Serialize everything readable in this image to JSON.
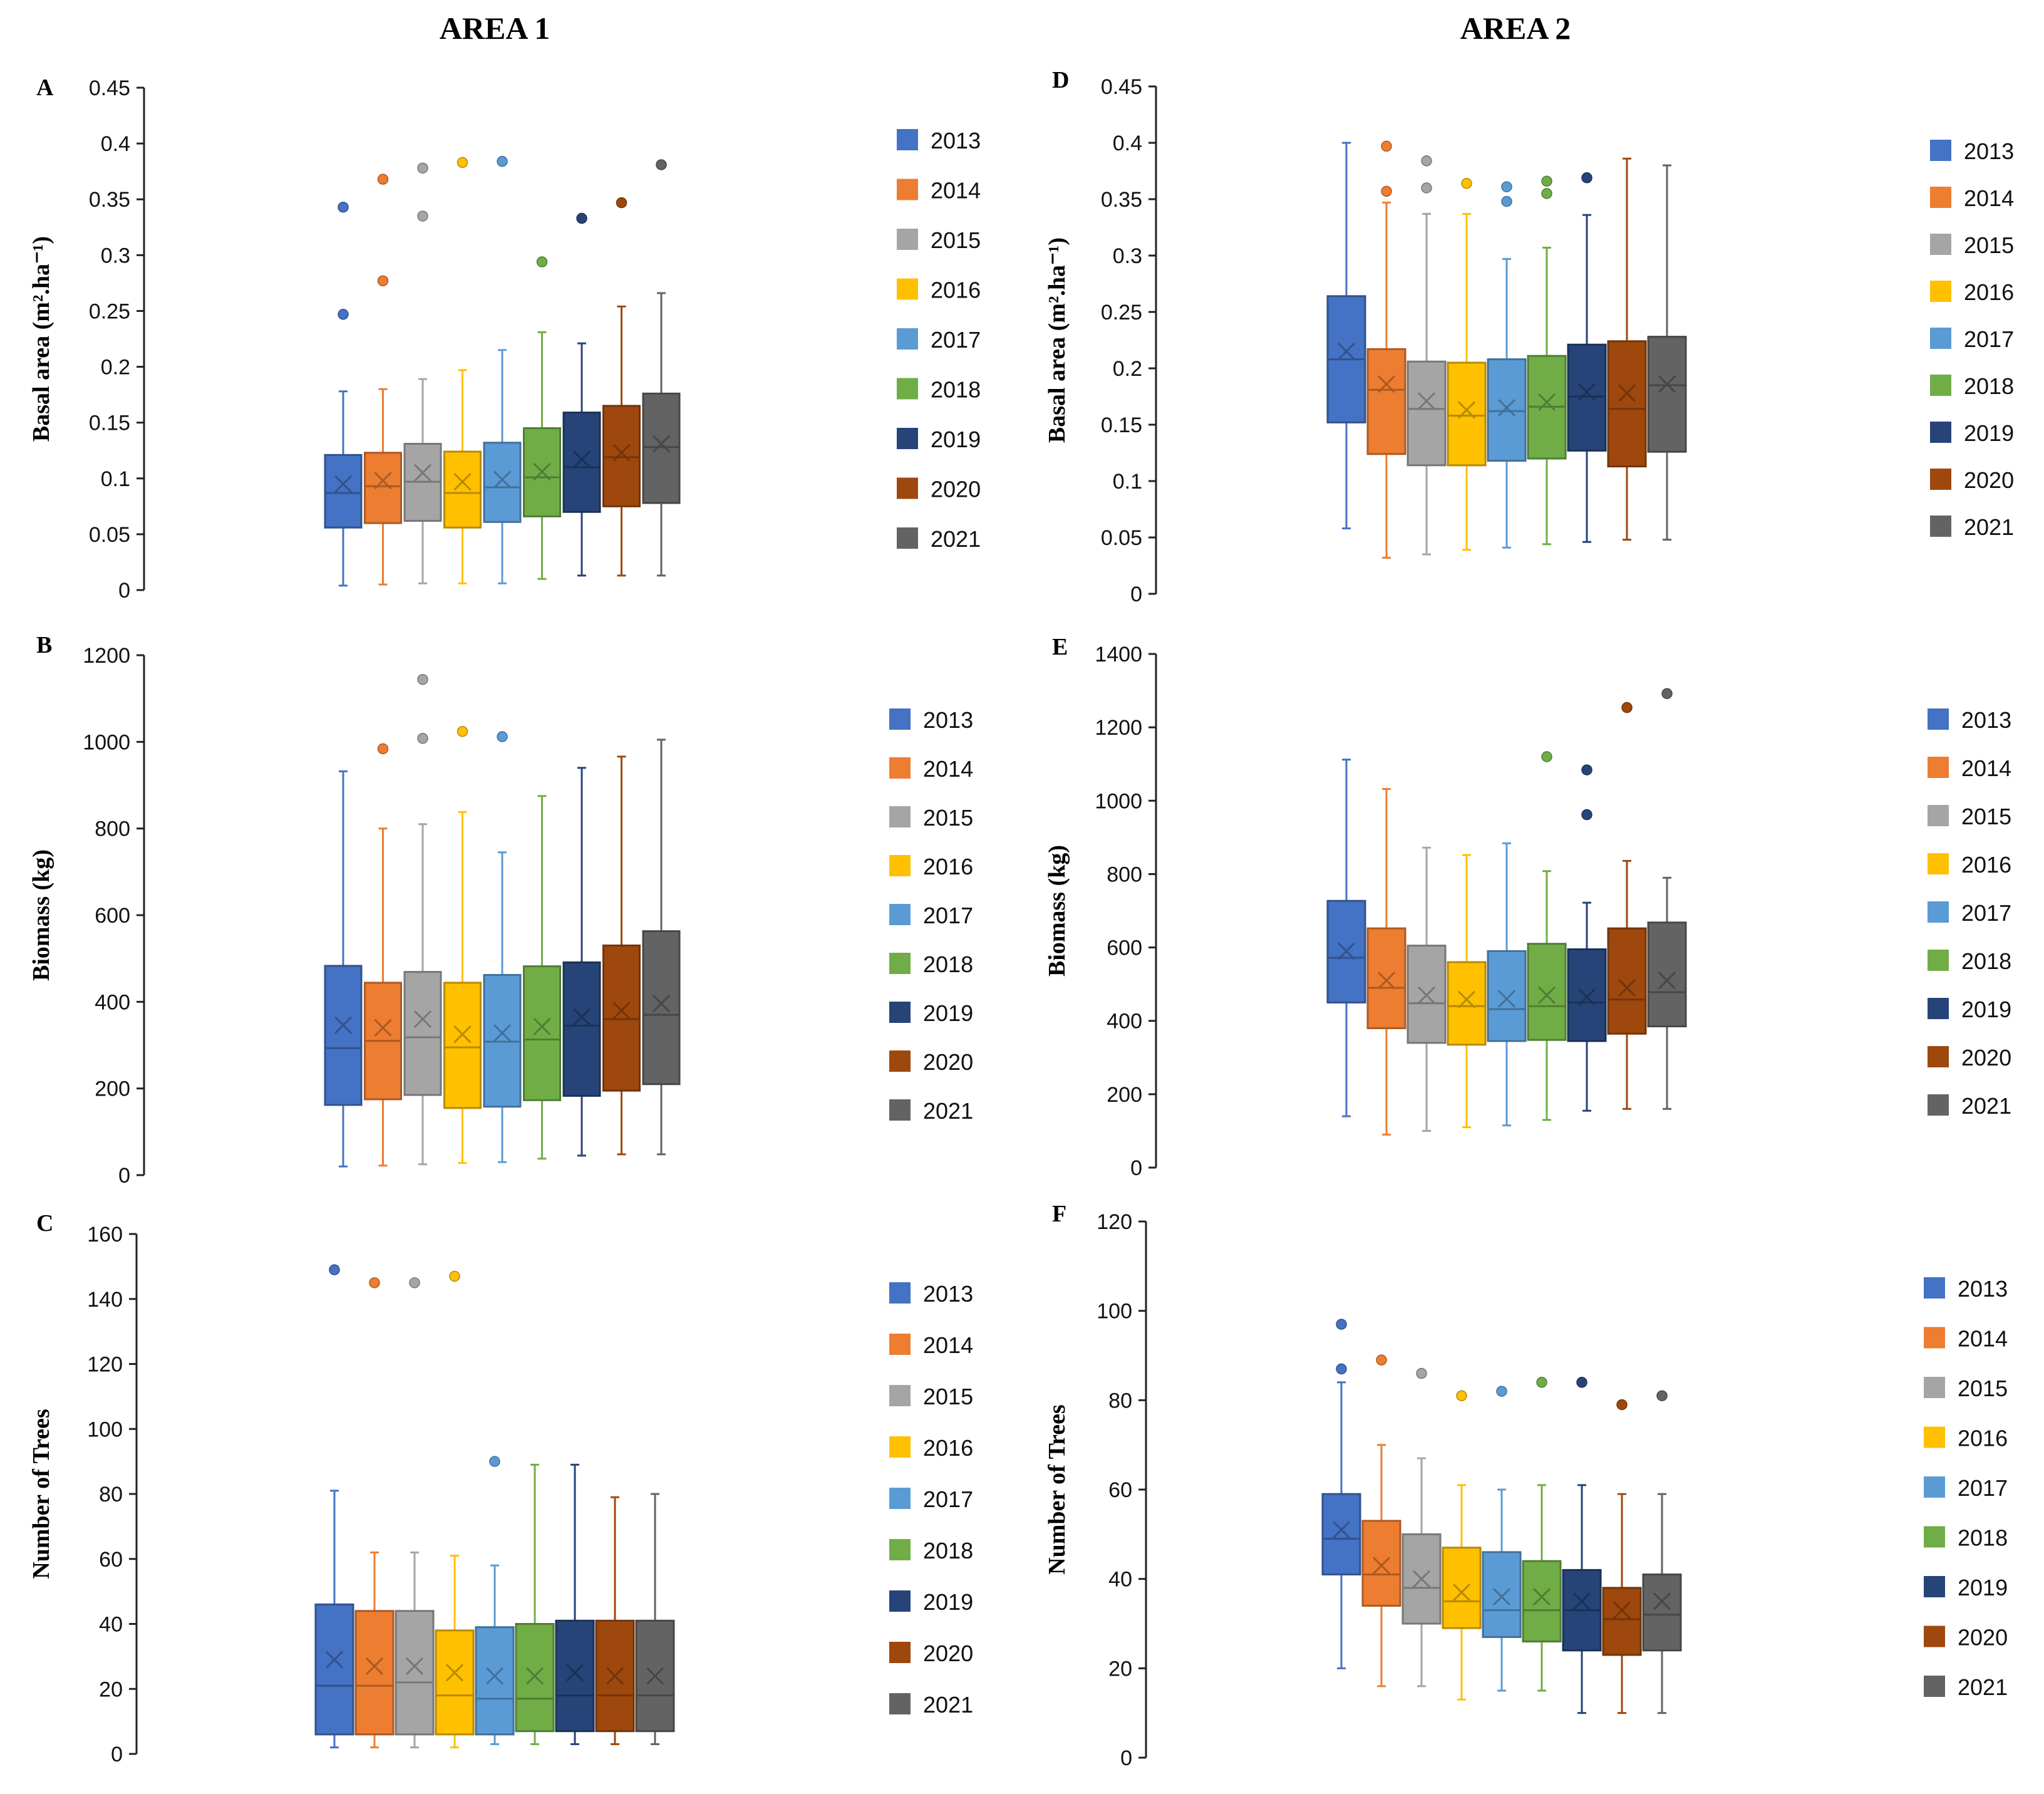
{
  "figure": {
    "area_titles": [
      "AREA 1",
      "AREA 2"
    ]
  },
  "legend": {
    "years": [
      "2013",
      "2014",
      "2015",
      "2016",
      "2017",
      "2018",
      "2019",
      "2020",
      "2021"
    ],
    "colors": [
      "#4472C4",
      "#ED7D31",
      "#A5A5A5",
      "#FFC000",
      "#5B9BD5",
      "#70AD47",
      "#264478",
      "#9E480E",
      "#636363"
    ]
  },
  "chart_data": [
    {
      "type": "box",
      "panel": "A",
      "area": "AREA 1",
      "ylabel": "Basal area (m².ha⁻¹)",
      "ylim": [
        0,
        0.45
      ],
      "yticks": [
        "0",
        "0.05",
        "0.1",
        "0.15",
        "0.2",
        "0.25",
        "0.3",
        "0.35",
        "0.4",
        "0.45"
      ],
      "series": [
        {
          "name": "2013",
          "min": 0.004,
          "q1": 0.056,
          "median": 0.087,
          "mean": 0.095,
          "q3": 0.121,
          "max": 0.178,
          "outliers": [
            0.247,
            0.343
          ]
        },
        {
          "name": "2014",
          "min": 0.005,
          "q1": 0.06,
          "median": 0.093,
          "mean": 0.098,
          "q3": 0.123,
          "max": 0.18,
          "outliers": [
            0.277,
            0.368
          ]
        },
        {
          "name": "2015",
          "min": 0.006,
          "q1": 0.062,
          "median": 0.097,
          "mean": 0.105,
          "q3": 0.131,
          "max": 0.189,
          "outliers": [
            0.335,
            0.378
          ]
        },
        {
          "name": "2016",
          "min": 0.006,
          "q1": 0.056,
          "median": 0.087,
          "mean": 0.097,
          "q3": 0.124,
          "max": 0.197,
          "outliers": [
            0.383
          ]
        },
        {
          "name": "2017",
          "min": 0.006,
          "q1": 0.061,
          "median": 0.092,
          "mean": 0.099,
          "q3": 0.132,
          "max": 0.215,
          "outliers": [
            0.384
          ]
        },
        {
          "name": "2018",
          "min": 0.01,
          "q1": 0.066,
          "median": 0.101,
          "mean": 0.106,
          "q3": 0.145,
          "max": 0.231,
          "outliers": [
            0.294
          ]
        },
        {
          "name": "2019",
          "min": 0.013,
          "q1": 0.07,
          "median": 0.11,
          "mean": 0.117,
          "q3": 0.159,
          "max": 0.221,
          "outliers": [
            0.333
          ]
        },
        {
          "name": "2020",
          "min": 0.013,
          "q1": 0.075,
          "median": 0.119,
          "mean": 0.123,
          "q3": 0.165,
          "max": 0.254,
          "outliers": [
            0.347
          ]
        },
        {
          "name": "2021",
          "min": 0.013,
          "q1": 0.078,
          "median": 0.128,
          "mean": 0.131,
          "q3": 0.176,
          "max": 0.266,
          "outliers": [
            0.381
          ]
        }
      ]
    },
    {
      "type": "box",
      "panel": "B",
      "area": "AREA 1",
      "ylabel": "Biomass (kg)",
      "ylim": [
        0,
        1200
      ],
      "yticks": [
        "0",
        "200",
        "400",
        "600",
        "800",
        "1000",
        "1200"
      ],
      "series": [
        {
          "name": "2013",
          "min": 20,
          "q1": 162,
          "median": 293,
          "mean": 346,
          "q3": 483,
          "max": 932,
          "outliers": []
        },
        {
          "name": "2014",
          "min": 22,
          "q1": 175,
          "median": 310,
          "mean": 340,
          "q3": 444,
          "max": 800,
          "outliers": [
            984
          ]
        },
        {
          "name": "2015",
          "min": 25,
          "q1": 185,
          "median": 318,
          "mean": 360,
          "q3": 469,
          "max": 810,
          "outliers": [
            1008,
            1144
          ]
        },
        {
          "name": "2016",
          "min": 28,
          "q1": 155,
          "median": 295,
          "mean": 325,
          "q3": 444,
          "max": 838,
          "outliers": [
            1024
          ]
        },
        {
          "name": "2017",
          "min": 30,
          "q1": 158,
          "median": 308,
          "mean": 328,
          "q3": 462,
          "max": 745,
          "outliers": [
            1012
          ]
        },
        {
          "name": "2018",
          "min": 38,
          "q1": 173,
          "median": 313,
          "mean": 343,
          "q3": 482,
          "max": 875,
          "outliers": []
        },
        {
          "name": "2019",
          "min": 45,
          "q1": 183,
          "median": 345,
          "mean": 365,
          "q3": 491,
          "max": 940,
          "outliers": []
        },
        {
          "name": "2020",
          "min": 48,
          "q1": 195,
          "median": 360,
          "mean": 380,
          "q3": 530,
          "max": 966,
          "outliers": []
        },
        {
          "name": "2021",
          "min": 48,
          "q1": 210,
          "median": 370,
          "mean": 396,
          "q3": 563,
          "max": 1005,
          "outliers": []
        }
      ]
    },
    {
      "type": "box",
      "panel": "C",
      "area": "AREA 1",
      "ylabel": "Number of Trees",
      "ylim": [
        0,
        160
      ],
      "yticks": [
        "0",
        "20",
        "40",
        "60",
        "80",
        "100",
        "120",
        "140",
        "160"
      ],
      "series": [
        {
          "name": "2013",
          "min": 2,
          "q1": 6,
          "median": 21,
          "mean": 29,
          "q3": 46,
          "max": 81,
          "outliers": [
            149
          ]
        },
        {
          "name": "2014",
          "min": 2,
          "q1": 6,
          "median": 21,
          "mean": 27,
          "q3": 44,
          "max": 62,
          "outliers": [
            145
          ]
        },
        {
          "name": "2015",
          "min": 2,
          "q1": 6,
          "median": 22,
          "mean": 27,
          "q3": 44,
          "max": 62,
          "outliers": [
            145
          ]
        },
        {
          "name": "2016",
          "min": 2,
          "q1": 6,
          "median": 18,
          "mean": 25,
          "q3": 38,
          "max": 61,
          "outliers": [
            147
          ]
        },
        {
          "name": "2017",
          "min": 3,
          "q1": 6,
          "median": 17,
          "mean": 24,
          "q3": 39,
          "max": 58,
          "outliers": [
            90
          ]
        },
        {
          "name": "2018",
          "min": 3,
          "q1": 7,
          "median": 17,
          "mean": 24,
          "q3": 40,
          "max": 89,
          "outliers": []
        },
        {
          "name": "2019",
          "min": 3,
          "q1": 7,
          "median": 18,
          "mean": 25,
          "q3": 41,
          "max": 89,
          "outliers": []
        },
        {
          "name": "2020",
          "min": 3,
          "q1": 7,
          "median": 18,
          "mean": 24,
          "q3": 41,
          "max": 79,
          "outliers": []
        },
        {
          "name": "2021",
          "min": 3,
          "q1": 7,
          "median": 18,
          "mean": 24,
          "q3": 41,
          "max": 80,
          "outliers": []
        }
      ]
    },
    {
      "type": "box",
      "panel": "D",
      "area": "AREA 2",
      "ylabel": "Basal area (m².ha⁻¹)",
      "ylim": [
        0,
        0.45
      ],
      "yticks": [
        "0",
        "0.05",
        "0.1",
        "0.15",
        "0.2",
        "0.25",
        "0.3",
        "0.35",
        "0.4",
        "0.45"
      ],
      "series": [
        {
          "name": "2013",
          "min": 0.058,
          "q1": 0.152,
          "median": 0.208,
          "mean": 0.215,
          "q3": 0.264,
          "max": 0.4,
          "outliers": []
        },
        {
          "name": "2014",
          "min": 0.032,
          "q1": 0.124,
          "median": 0.181,
          "mean": 0.186,
          "q3": 0.217,
          "max": 0.347,
          "outliers": [
            0.357,
            0.397
          ]
        },
        {
          "name": "2015",
          "min": 0.035,
          "q1": 0.114,
          "median": 0.164,
          "mean": 0.171,
          "q3": 0.206,
          "max": 0.337,
          "outliers": [
            0.36,
            0.384
          ]
        },
        {
          "name": "2016",
          "min": 0.039,
          "q1": 0.114,
          "median": 0.158,
          "mean": 0.163,
          "q3": 0.205,
          "max": 0.337,
          "outliers": [
            0.364
          ]
        },
        {
          "name": "2017",
          "min": 0.041,
          "q1": 0.118,
          "median": 0.162,
          "mean": 0.165,
          "q3": 0.208,
          "max": 0.297,
          "outliers": [
            0.348,
            0.361
          ]
        },
        {
          "name": "2018",
          "min": 0.044,
          "q1": 0.12,
          "median": 0.166,
          "mean": 0.17,
          "q3": 0.211,
          "max": 0.307,
          "outliers": [
            0.355,
            0.366
          ]
        },
        {
          "name": "2019",
          "min": 0.046,
          "q1": 0.127,
          "median": 0.175,
          "mean": 0.179,
          "q3": 0.221,
          "max": 0.336,
          "outliers": [
            0.369
          ]
        },
        {
          "name": "2020",
          "min": 0.048,
          "q1": 0.113,
          "median": 0.164,
          "mean": 0.178,
          "q3": 0.224,
          "max": 0.386,
          "outliers": []
        },
        {
          "name": "2021",
          "min": 0.048,
          "q1": 0.126,
          "median": 0.185,
          "mean": 0.186,
          "q3": 0.228,
          "max": 0.38,
          "outliers": []
        }
      ]
    },
    {
      "type": "box",
      "panel": "E",
      "area": "AREA 2",
      "ylabel": "Biomass (kg)",
      "ylim": [
        0,
        1400
      ],
      "yticks": [
        "0",
        "200",
        "400",
        "600",
        "800",
        "1000",
        "1200",
        "1400"
      ],
      "series": [
        {
          "name": "2013",
          "min": 140,
          "q1": 450,
          "median": 572,
          "mean": 590,
          "q3": 727,
          "max": 1112,
          "outliers": []
        },
        {
          "name": "2014",
          "min": 90,
          "q1": 380,
          "median": 490,
          "mean": 510,
          "q3": 652,
          "max": 1032,
          "outliers": []
        },
        {
          "name": "2015",
          "min": 100,
          "q1": 340,
          "median": 448,
          "mean": 470,
          "q3": 605,
          "max": 872,
          "outliers": []
        },
        {
          "name": "2016",
          "min": 110,
          "q1": 335,
          "median": 440,
          "mean": 458,
          "q3": 560,
          "max": 852,
          "outliers": []
        },
        {
          "name": "2017",
          "min": 115,
          "q1": 345,
          "median": 432,
          "mean": 460,
          "q3": 590,
          "max": 884,
          "outliers": []
        },
        {
          "name": "2018",
          "min": 130,
          "q1": 348,
          "median": 440,
          "mean": 470,
          "q3": 610,
          "max": 808,
          "outliers": [
            1120
          ]
        },
        {
          "name": "2019",
          "min": 155,
          "q1": 345,
          "median": 450,
          "mean": 465,
          "q3": 595,
          "max": 722,
          "outliers": [
            962,
            1084
          ]
        },
        {
          "name": "2020",
          "min": 160,
          "q1": 365,
          "median": 458,
          "mean": 490,
          "q3": 652,
          "max": 836,
          "outliers": [
            1254
          ]
        },
        {
          "name": "2021",
          "min": 160,
          "q1": 385,
          "median": 478,
          "mean": 510,
          "q3": 668,
          "max": 790,
          "outliers": [
            1292
          ]
        }
      ]
    },
    {
      "type": "box",
      "panel": "F",
      "area": "AREA 2",
      "ylabel": "Number of Trees",
      "ylim": [
        0,
        120
      ],
      "yticks": [
        "0",
        "20",
        "40",
        "60",
        "80",
        "100",
        "120"
      ],
      "series": [
        {
          "name": "2013",
          "min": 20,
          "q1": 41,
          "median": 49,
          "mean": 51,
          "q3": 59,
          "max": 84,
          "outliers": [
            87,
            97
          ]
        },
        {
          "name": "2014",
          "min": 16,
          "q1": 34,
          "median": 41,
          "mean": 43,
          "q3": 53,
          "max": 70,
          "outliers": [
            89
          ]
        },
        {
          "name": "2015",
          "min": 16,
          "q1": 30,
          "median": 38,
          "mean": 40,
          "q3": 50,
          "max": 67,
          "outliers": [
            86
          ]
        },
        {
          "name": "2016",
          "min": 13,
          "q1": 29,
          "median": 35,
          "mean": 37,
          "q3": 47,
          "max": 61,
          "outliers": [
            81
          ]
        },
        {
          "name": "2017",
          "min": 15,
          "q1": 27,
          "median": 33,
          "mean": 36,
          "q3": 46,
          "max": 60,
          "outliers": [
            82
          ]
        },
        {
          "name": "2018",
          "min": 15,
          "q1": 26,
          "median": 33,
          "mean": 36,
          "q3": 44,
          "max": 61,
          "outliers": [
            84
          ]
        },
        {
          "name": "2019",
          "min": 10,
          "q1": 24,
          "median": 33,
          "mean": 35,
          "q3": 42,
          "max": 61,
          "outliers": [
            84
          ]
        },
        {
          "name": "2020",
          "min": 10,
          "q1": 23,
          "median": 31,
          "mean": 33,
          "q3": 38,
          "max": 59,
          "outliers": [
            79
          ]
        },
        {
          "name": "2021",
          "min": 10,
          "q1": 24,
          "median": 32,
          "mean": 35,
          "q3": 41,
          "max": 59,
          "outliers": [
            81
          ]
        }
      ]
    }
  ]
}
